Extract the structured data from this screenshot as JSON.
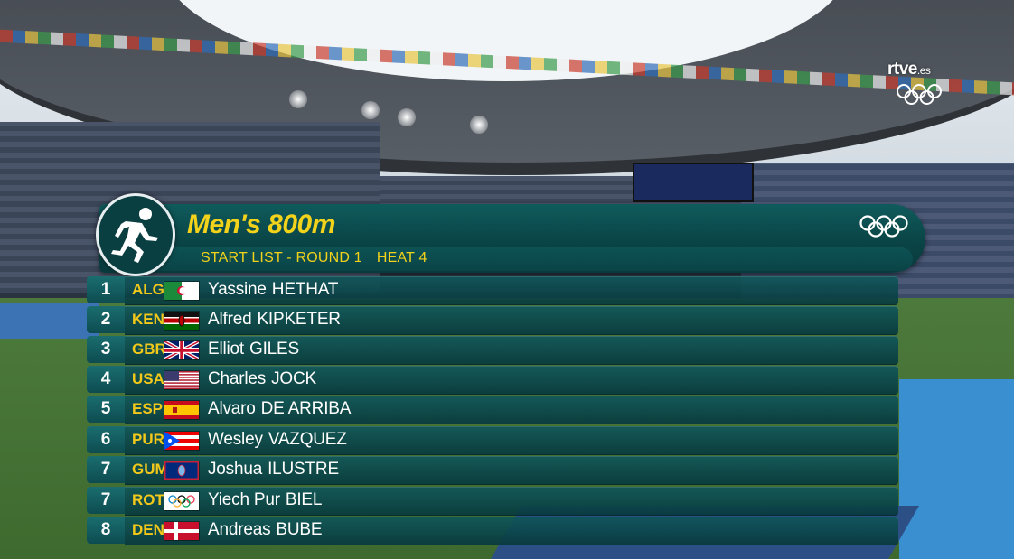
{
  "broadcaster": {
    "name": "rtve",
    "suffix": ".es",
    "icon": "olympic-rings-icon"
  },
  "event": {
    "title": "Men's 800m",
    "subtitle_parts": [
      "START LIST - ROUND 1",
      "HEAT 4"
    ],
    "emblem_icon": "athletics-runner-icon",
    "rings_icon": "olympic-rings-icon"
  },
  "colors": {
    "accent": "#f2d21a",
    "code": "#f2c81a",
    "panel": "#0a4446"
  },
  "athletes": [
    {
      "lane": "1",
      "code": "ALG",
      "first": "Yassine",
      "last": "HETHAT",
      "flag_icon": "flag-algeria-icon"
    },
    {
      "lane": "2",
      "code": "KEN",
      "first": "Alfred",
      "last": "KIPKETER",
      "flag_icon": "flag-kenya-icon"
    },
    {
      "lane": "3",
      "code": "GBR",
      "first": "Elliot",
      "last": "GILES",
      "flag_icon": "flag-great-britain-icon"
    },
    {
      "lane": "4",
      "code": "USA",
      "first": "Charles",
      "last": "JOCK",
      "flag_icon": "flag-usa-icon"
    },
    {
      "lane": "5",
      "code": "ESP",
      "first": "Alvaro",
      "last": "DE ARRIBA",
      "flag_icon": "flag-spain-icon"
    },
    {
      "lane": "6",
      "code": "PUR",
      "first": "Wesley",
      "last": "VAZQUEZ",
      "flag_icon": "flag-puerto-rico-icon"
    },
    {
      "lane": "7",
      "code": "GUM",
      "first": "Joshua",
      "last": "ILUSTRE",
      "flag_icon": "flag-guam-icon"
    },
    {
      "lane": "7",
      "code": "ROT",
      "first": "Yiech Pur",
      "last": "BIEL",
      "flag_icon": "flag-olympic-refugee-icon"
    },
    {
      "lane": "8",
      "code": "DEN",
      "first": "Andreas",
      "last": "BUBE",
      "flag_icon": "flag-denmark-icon"
    }
  ]
}
